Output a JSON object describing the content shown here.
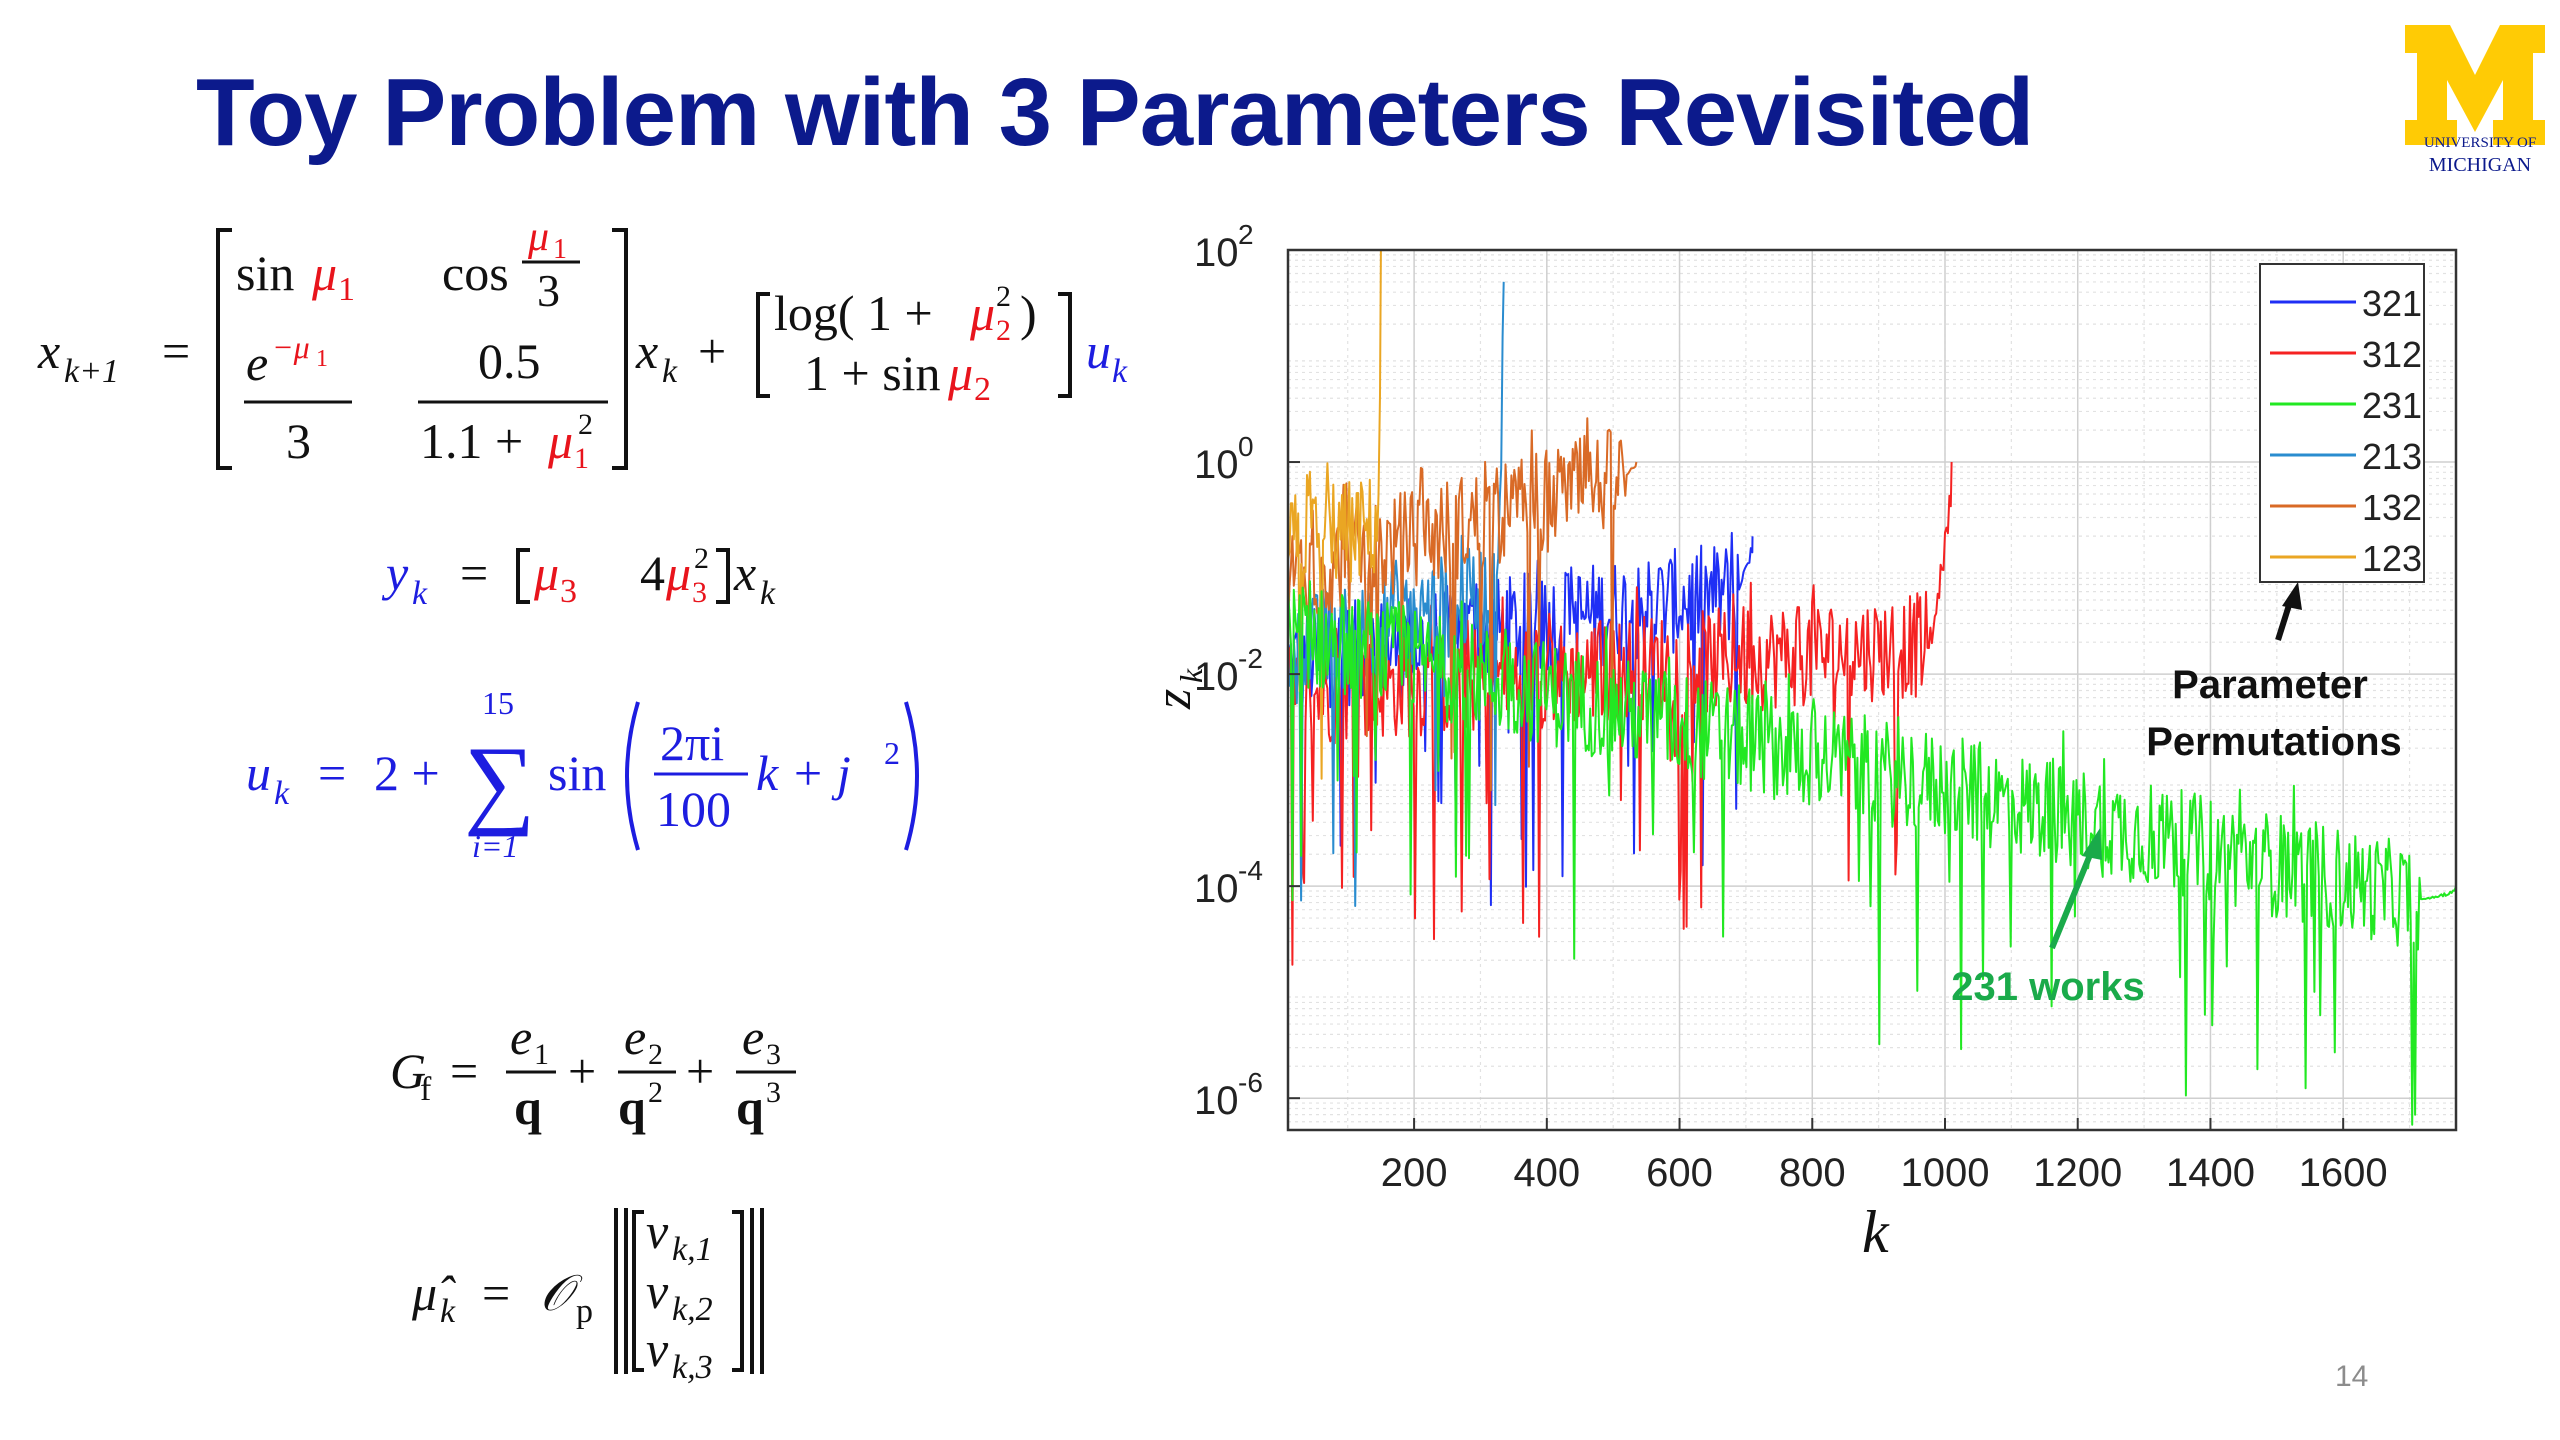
{
  "slide": {
    "title": "Toy Problem with 3 Parameters Revisited",
    "logo": {
      "line1": "UNIVERSITY OF",
      "line2": "MICHIGAN",
      "color": "#ffcb05"
    },
    "page_number": "14",
    "colors": {
      "title": "#0c1a8c",
      "param": "#e8141c",
      "signal": "#1d1de0",
      "black": "#111111",
      "annotation_green": "#1aaa4a"
    }
  },
  "equations": {
    "state": {
      "lhs": "x",
      "lhs_sub": "k+1",
      "eq": "=",
      "a11_fn": "sin",
      "a11_var": "μ",
      "a11_sub": "1",
      "a12_fn": "cos",
      "a12_var": "μ",
      "a12_sub": "1",
      "a12_den": "3",
      "a21_base": "e",
      "a21_sup": "−μ",
      "a21_sup_sub": "1",
      "a21_den": "3",
      "a22_num": "0.5",
      "a22_den_pre": "1.1 + ",
      "a22_var": "μ",
      "a22_sub": "1",
      "a22_sup": "2",
      "x": "x",
      "x_sub": "k",
      "plus": "+",
      "b1_pre": "log( 1 + ",
      "b1_var": "μ",
      "b1_sub": "2",
      "b1_sup": "2",
      "b1_post": ")",
      "b2_pre": "1 + sin ",
      "b2_var": "μ",
      "b2_sub": "2",
      "u": "u",
      "u_sub": "k"
    },
    "output": {
      "lhs": "y",
      "lhs_sub": "k",
      "eq": "=",
      "c1_var": "μ",
      "c1_sub": "3",
      "c2_coef": "4",
      "c2_var": "μ",
      "c2_sub": "3",
      "c2_sup": "2",
      "x": "x",
      "x_sub": "k"
    },
    "input": {
      "lhs": "u",
      "lhs_sub": "k",
      "eq": "=",
      "two_plus": "2 +",
      "sum_top": "15",
      "sum_bottom": "i=1",
      "sum_symbol": "∑",
      "fn": "sin",
      "num": "2πi",
      "den": "100",
      "post": "k + j",
      "post_sup": "2"
    },
    "gf": {
      "lhs": "G",
      "lhs_sub": "f",
      "eq": "=",
      "t1_num": "e",
      "t1_num_sub": "1",
      "t1_den": "q",
      "t2_num": "e",
      "t2_num_sub": "2",
      "t2_den": "q",
      "t2_den_sup": "2",
      "t3_num": "e",
      "t3_num_sub": "3",
      "t3_den": "q",
      "t3_den_sup": "3",
      "plus": "+"
    },
    "mu_hat": {
      "lhs": "μ̂",
      "lhs_sub": "k",
      "eq": "=",
      "op": "𝒪",
      "op_sub": "p",
      "v": "ν",
      "v1_sub": "k,1",
      "v2_sub": "k,2",
      "v3_sub": "k,3"
    }
  },
  "chart_data": {
    "type": "line",
    "title": "",
    "xlabel": "k",
    "ylabel": "z",
    "ylabel_sub": "k",
    "y_scale": "log",
    "xlim": [
      10,
      1770
    ],
    "ylim_exp": [
      -6.3,
      2
    ],
    "x_ticks": [
      200,
      400,
      600,
      800,
      1000,
      1200,
      1400,
      1600
    ],
    "y_ticks": [
      {
        "base": "10",
        "exp": "2",
        "value_exp": 2
      },
      {
        "base": "10",
        "exp": "0",
        "value_exp": 0
      },
      {
        "base": "10",
        "exp": "-2",
        "value_exp": -2
      },
      {
        "base": "10",
        "exp": "-4",
        "value_exp": -4
      },
      {
        "base": "10",
        "exp": "-6",
        "value_exp": -6
      }
    ],
    "grid": true,
    "legend_position": "top-right",
    "series": [
      {
        "name": "321",
        "color": "#1f2ff5",
        "x_end": 710,
        "approx_envelope_log10": [
          -1.9,
          -1.2
        ],
        "final_spike_log10": -0.7
      },
      {
        "name": "312",
        "color": "#f52222",
        "x_end": 1010,
        "approx_envelope_log10": [
          -2.2,
          -1.7
        ],
        "final_spike_log10": 0.0
      },
      {
        "name": "231",
        "color": "#22e822",
        "x_end": 1770,
        "approx_envelope_log10": [
          -1.6,
          -4.2
        ],
        "final_spike_log10": -4.0
      },
      {
        "name": "213",
        "color": "#2a8ccf",
        "x_end": 335,
        "approx_envelope_log10": [
          -1.8,
          -1.2
        ],
        "final_spike_log10": 1.7
      },
      {
        "name": "132",
        "color": "#d96a26",
        "x_end": 535,
        "approx_envelope_log10": [
          -1.1,
          -0.1
        ],
        "final_spike_log10": 0.0
      },
      {
        "name": "123",
        "color": "#eaa623",
        "x_end": 150,
        "approx_envelope_log10": [
          -0.8,
          -0.6
        ],
        "final_spike_log10": 2.0
      }
    ],
    "annotations": [
      {
        "text_line1": "Parameter",
        "text_line2": "Permutations"
      },
      {
        "text": "231 works"
      }
    ]
  }
}
